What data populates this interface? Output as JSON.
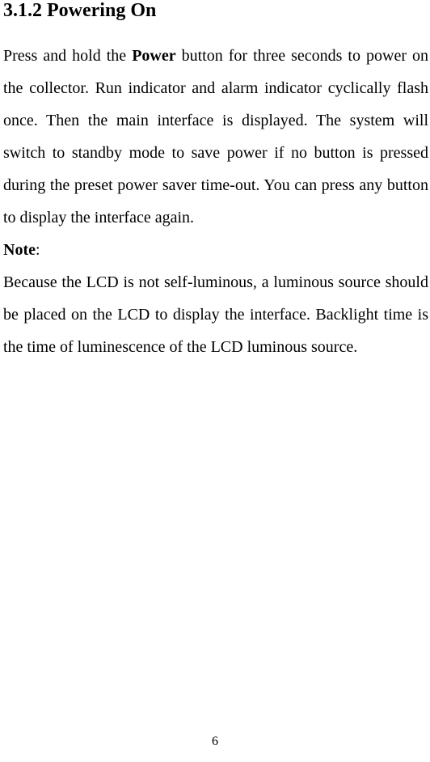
{
  "heading": "3.1.2 Powering On",
  "para1_pre": "Press and hold the ",
  "para1_bold": "Power",
  "para1_post": " button for three seconds to power on the collector. Run indicator and alarm indicator cyclically flash once. Then the main interface is displayed. The system will switch to standby mode to save power if no button is pressed during the preset power saver time-out. You can press any button to display the interface again.",
  "note_label": "Note",
  "note_colon": ":",
  "para2": "Because the LCD is not self-luminous, a luminous source should be placed on the LCD to display the interface. Backlight time is the time of luminescence of the LCD luminous source.",
  "page_number": "6"
}
